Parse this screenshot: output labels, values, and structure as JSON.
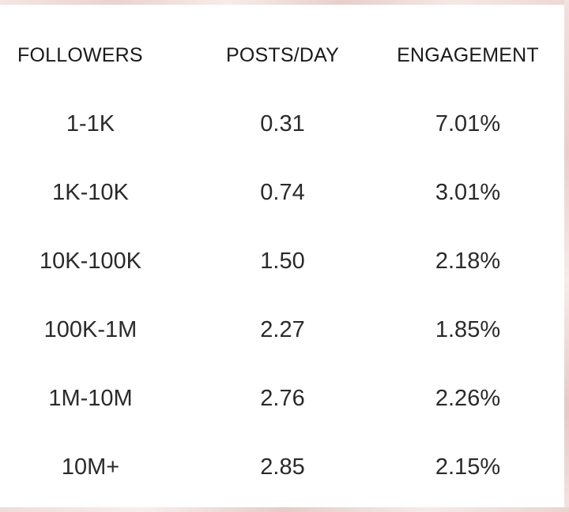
{
  "table": {
    "headers": [
      "FOLLOWERS",
      "POSTS/DAY",
      "ENGAGEMENT"
    ],
    "rows": [
      [
        "1-1K",
        "0.31",
        "7.01%"
      ],
      [
        "1K-10K",
        "0.74",
        "3.01%"
      ],
      [
        "10K-100K",
        "1.50",
        "2.18%"
      ],
      [
        "100K-1M",
        "2.27",
        "1.85%"
      ],
      [
        "1M-10M",
        "2.76",
        "2.26%"
      ],
      [
        "10M+",
        "2.85",
        "2.15%"
      ]
    ]
  }
}
